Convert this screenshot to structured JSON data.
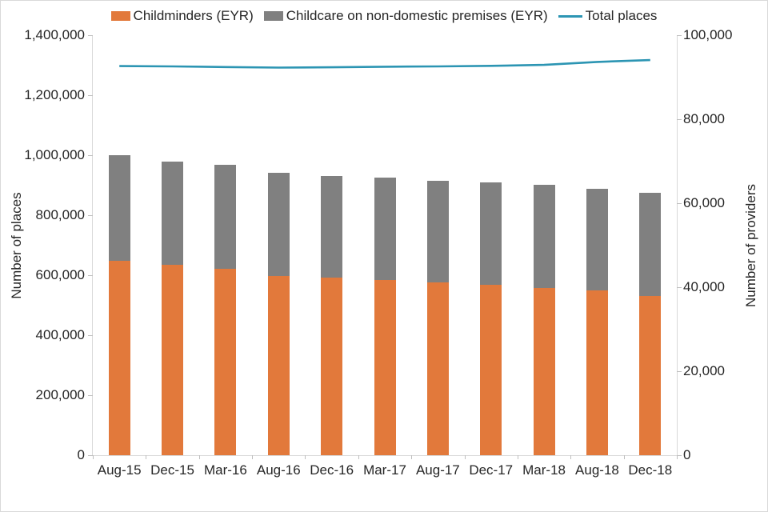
{
  "chart": {
    "left_axis": {
      "title": "Number of places",
      "tick_labels": [
        "0",
        "200,000",
        "400,000",
        "600,000",
        "800,000",
        "1,000,000",
        "1,200,000",
        "1,400,000"
      ]
    },
    "right_axis": {
      "title": "Number of providers",
      "tick_labels": [
        "0",
        "20,000",
        "40,000",
        "60,000",
        "80,000",
        "100,000"
      ]
    },
    "colors": {
      "childminders": "#e2793b",
      "non_domestic": "#808080",
      "total_places_line": "#2c95b3",
      "axis_line": "#d9d9d9",
      "text": "#262626"
    }
  },
  "chart_data": {
    "type": "combo",
    "categories": [
      "Aug-15",
      "Dec-15",
      "Mar-16",
      "Aug-16",
      "Dec-16",
      "Mar-17",
      "Aug-17",
      "Dec-17",
      "Mar-18",
      "Aug-18",
      "Dec-18"
    ],
    "series": [
      {
        "name": "Childminders (EYR)",
        "type": "bar",
        "stack": "providers",
        "axis": "right",
        "color": "#e2793b",
        "values": [
          46300,
          45300,
          44400,
          42700,
          42200,
          41700,
          41100,
          40600,
          39900,
          39300,
          38000
        ]
      },
      {
        "name": "Childcare on non-domestic premises (EYR)",
        "type": "bar",
        "stack": "providers",
        "axis": "right",
        "color": "#808080",
        "values": [
          25100,
          24700,
          24700,
          24500,
          24300,
          24400,
          24300,
          24300,
          24400,
          24100,
          24500
        ]
      },
      {
        "name": "Total places",
        "type": "line",
        "axis": "left",
        "color": "#2c95b3",
        "values": [
          1297000,
          1296000,
          1294000,
          1292000,
          1293000,
          1295000,
          1296000,
          1298000,
          1301000,
          1311000,
          1317000
        ]
      }
    ],
    "left_axis": {
      "label": "Number of places",
      "range": [
        0,
        1400000
      ],
      "step": 200000
    },
    "right_axis": {
      "label": "Number of providers",
      "range": [
        0,
        100000
      ],
      "step": 20000
    },
    "grid": false,
    "legend_position": "top"
  }
}
